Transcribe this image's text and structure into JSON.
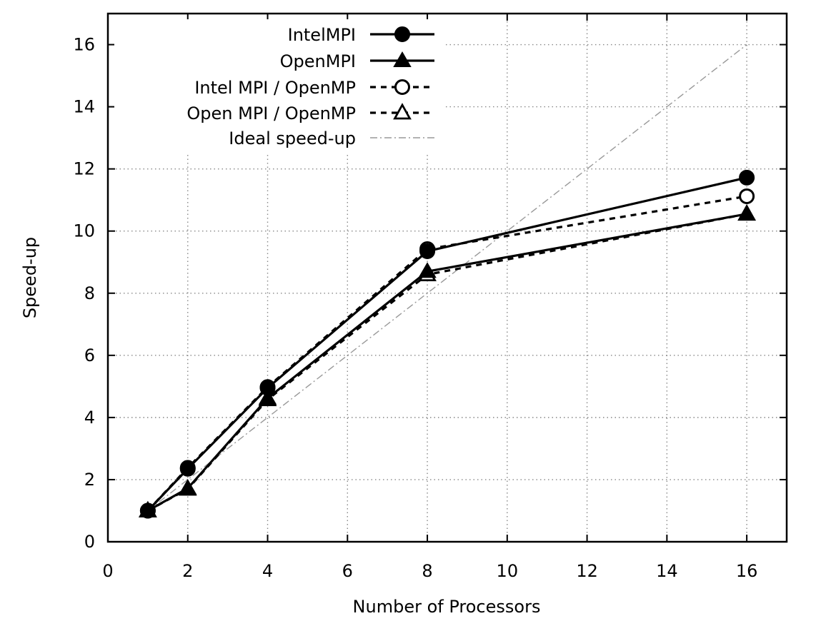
{
  "chart_data": {
    "type": "line",
    "title": "",
    "xlabel": "Number of Processors",
    "ylabel": "Speed-up",
    "xlim": [
      0,
      17
    ],
    "ylim": [
      0,
      17
    ],
    "xticks": [
      0,
      2,
      4,
      6,
      8,
      10,
      12,
      14,
      16
    ],
    "yticks": [
      0,
      2,
      4,
      6,
      8,
      10,
      12,
      14,
      16
    ],
    "grid": true,
    "legend_position": "top-center",
    "series": [
      {
        "name": "IntelMPI",
        "x": [
          1,
          2,
          4,
          8,
          16
        ],
        "y": [
          1.0,
          2.35,
          4.95,
          9.35,
          11.72
        ],
        "marker": "circle-filled",
        "line": "solid"
      },
      {
        "name": "OpenMPI",
        "x": [
          1,
          2,
          4,
          8,
          16
        ],
        "y": [
          1.0,
          1.72,
          4.62,
          8.7,
          10.55
        ],
        "marker": "triangle-filled",
        "line": "solid"
      },
      {
        "name": "Intel MPI / OpenMP",
        "x": [
          1,
          2,
          4,
          8,
          16
        ],
        "y": [
          1.0,
          2.38,
          4.98,
          9.42,
          11.12
        ],
        "marker": "circle-open",
        "line": "dashed"
      },
      {
        "name": "Open MPI / OpenMP",
        "x": [
          1,
          2,
          4,
          8,
          16
        ],
        "y": [
          1.0,
          1.7,
          4.58,
          8.6,
          10.55
        ],
        "marker": "triangle-open",
        "line": "dashed"
      },
      {
        "name": "Ideal speed-up",
        "x": [
          1,
          16
        ],
        "y": [
          1,
          16
        ],
        "marker": "none",
        "line": "dashdot"
      }
    ]
  }
}
